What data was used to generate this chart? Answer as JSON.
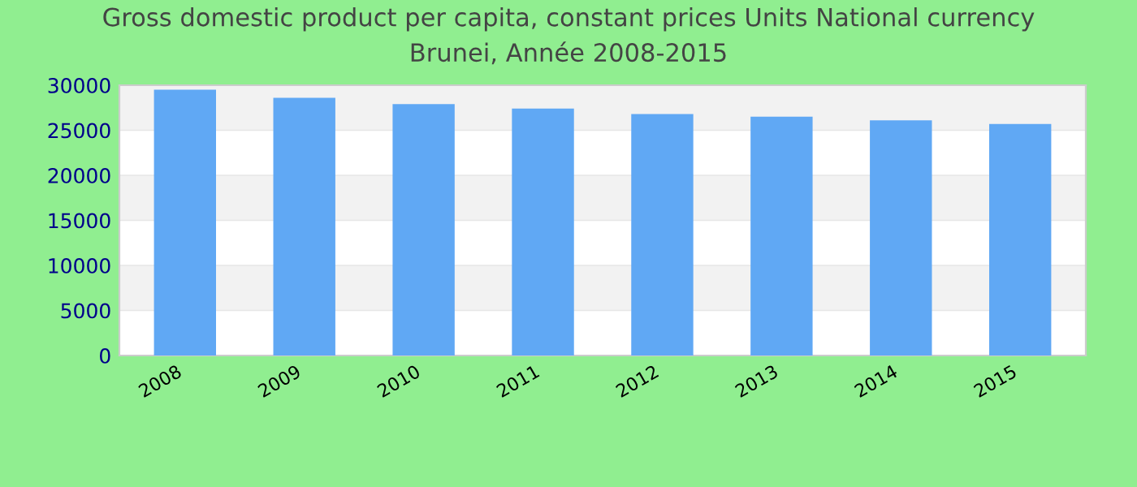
{
  "chart_data": {
    "type": "bar",
    "title": "Gross domestic product per capita, constant prices Units National currency\nBrunei, Année 2008-2015",
    "categories": [
      "2008",
      "2009",
      "2010",
      "2011",
      "2012",
      "2013",
      "2014",
      "2015"
    ],
    "values": [
      29500,
      28600,
      27900,
      27400,
      26800,
      26500,
      26100,
      25700
    ],
    "color": "#60a8f4",
    "ylim": [
      0,
      30000
    ],
    "yticks": [
      0,
      5000,
      10000,
      15000,
      20000,
      25000,
      30000
    ],
    "grid": "y"
  }
}
